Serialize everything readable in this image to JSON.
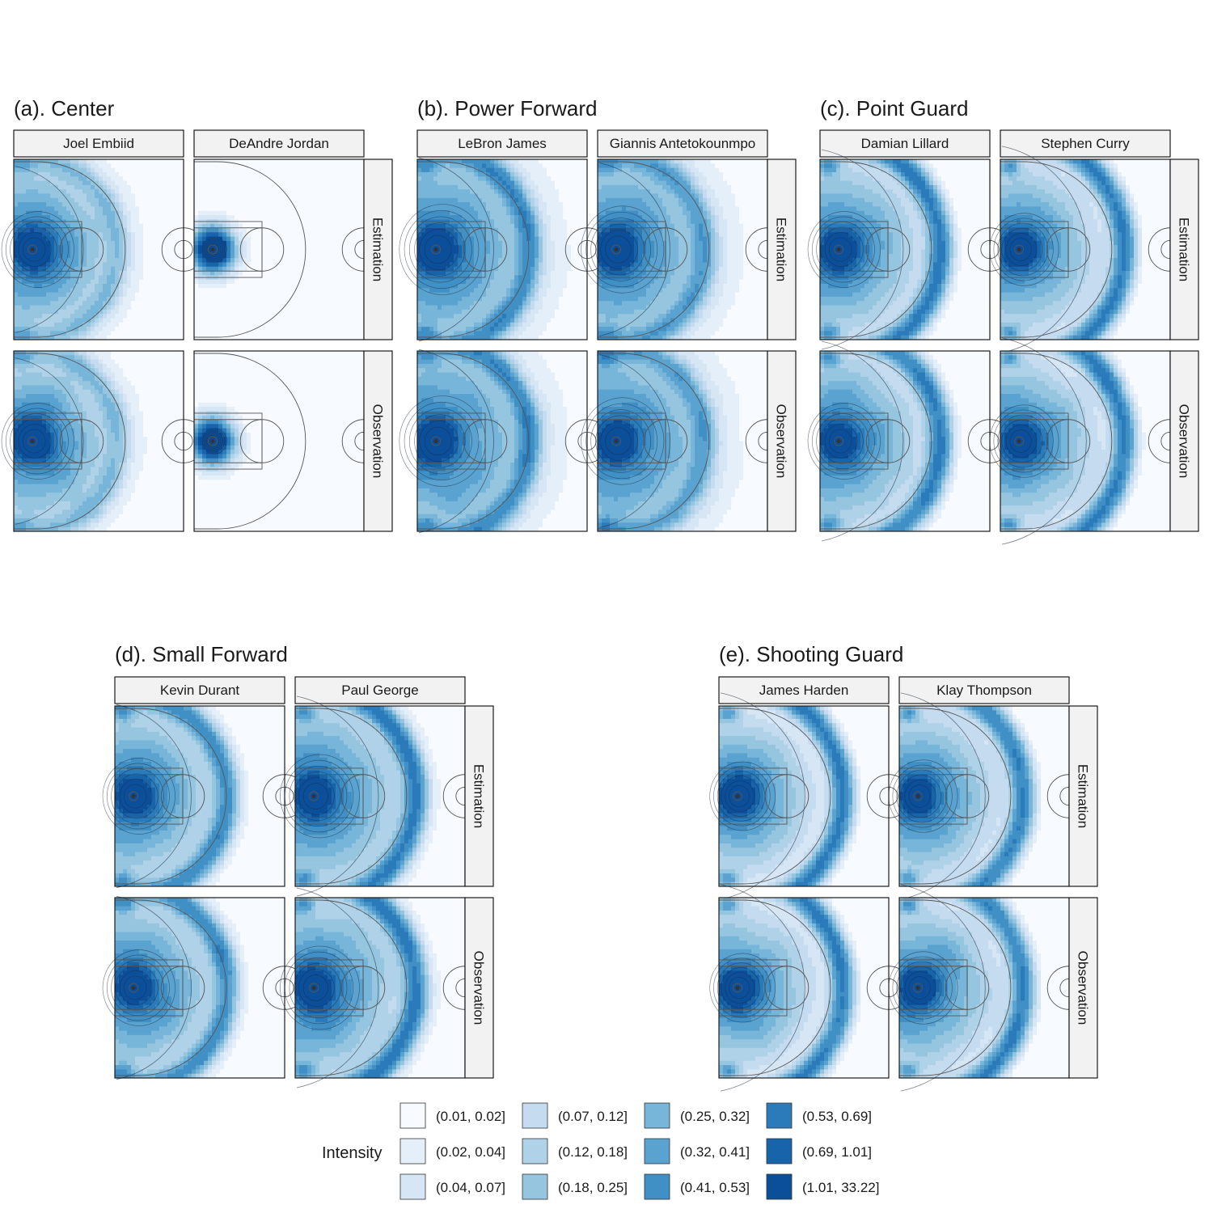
{
  "chart_data": {
    "type": "heatmap",
    "legend": {
      "title": "Intensity",
      "bins": [
        "(0.01, 0.02]",
        "(0.02, 0.04]",
        "(0.04, 0.07]",
        "(0.07, 0.12]",
        "(0.12, 0.18]",
        "(0.18, 0.25]",
        "(0.25, 0.32]",
        "(0.32, 0.41]",
        "(0.41, 0.53]",
        "(0.53, 0.69]",
        "(0.69, 1.01]",
        "(1.01, 33.22]"
      ],
      "colors": [
        "#f7fbff",
        "#e5eff9",
        "#d6e6f4",
        "#c5dbef",
        "#b0d2e8",
        "#95c5df",
        "#77b5d9",
        "#5aa2cf",
        "#4190c5",
        "#2b7bba",
        "#1764ab",
        "#0b4f9b"
      ]
    },
    "row_labels": [
      "Estimation",
      "Observation"
    ],
    "groups": [
      {
        "title": "(a). Center",
        "players": [
          {
            "name": "Joel Embiid",
            "peak": 1.0,
            "spread": 1.05,
            "arc": 0.35,
            "arc_r": 0.5,
            "dark_arc": false
          },
          {
            "name": "DeAndre Jordan",
            "peak": 1.0,
            "spread": 0.35,
            "arc": 0.0,
            "arc_r": 0.5,
            "dark_arc": false
          }
        ]
      },
      {
        "title": "(b). Power Forward",
        "players": [
          {
            "name": "LeBron James",
            "peak": 1.0,
            "spread": 1.25,
            "arc": 0.75,
            "arc_r": 0.55,
            "dark_arc": true
          },
          {
            "name": "Giannis Antetokounmpo",
            "peak": 1.0,
            "spread": 1.2,
            "arc": 0.55,
            "arc_r": 0.52,
            "dark_arc": false
          }
        ]
      },
      {
        "title": "(c). Point Guard",
        "players": [
          {
            "name": "Damian Lillard",
            "peak": 0.9,
            "spread": 1.05,
            "arc": 1.0,
            "arc_r": 0.6,
            "dark_arc": true
          },
          {
            "name": "Stephen Curry",
            "peak": 0.8,
            "spread": 1.0,
            "arc": 1.0,
            "arc_r": 0.62,
            "dark_arc": true
          }
        ]
      },
      {
        "title": "(d). Small Forward",
        "players": [
          {
            "name": "Kevin Durant",
            "peak": 0.85,
            "spread": 1.05,
            "arc": 0.8,
            "arc_r": 0.55,
            "dark_arc": true
          },
          {
            "name": "Paul George",
            "peak": 0.9,
            "spread": 1.15,
            "arc": 0.95,
            "arc_r": 0.6,
            "dark_arc": true
          }
        ]
      },
      {
        "title": "(e). Shooting Guard",
        "players": [
          {
            "name": "James Harden",
            "peak": 0.95,
            "spread": 0.95,
            "arc": 1.0,
            "arc_r": 0.62,
            "dark_arc": true
          },
          {
            "name": "Klay Thompson",
            "peak": 0.8,
            "spread": 1.0,
            "arc": 0.95,
            "arc_r": 0.62,
            "dark_arc": true
          }
        ]
      }
    ]
  }
}
